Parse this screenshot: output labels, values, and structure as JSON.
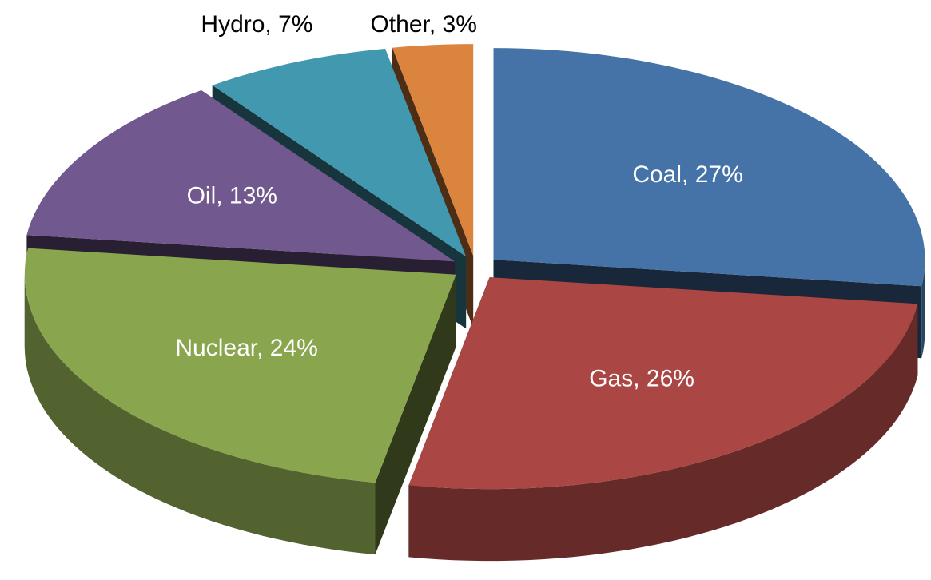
{
  "chart_data": {
    "type": "pie3d",
    "values": [
      27,
      26,
      24,
      13,
      7,
      3
    ],
    "value_labels": [
      "Coal, 27%",
      "Gas, 26%",
      "Nuclear, 24%",
      "Oil, 13%",
      "Hydro, 7%",
      "Other, 3%"
    ],
    "colors": [
      "#4572a7",
      "#aa4643",
      "#89a54e",
      "#71588f",
      "#4198af",
      "#db843d"
    ],
    "exploded": true
  }
}
